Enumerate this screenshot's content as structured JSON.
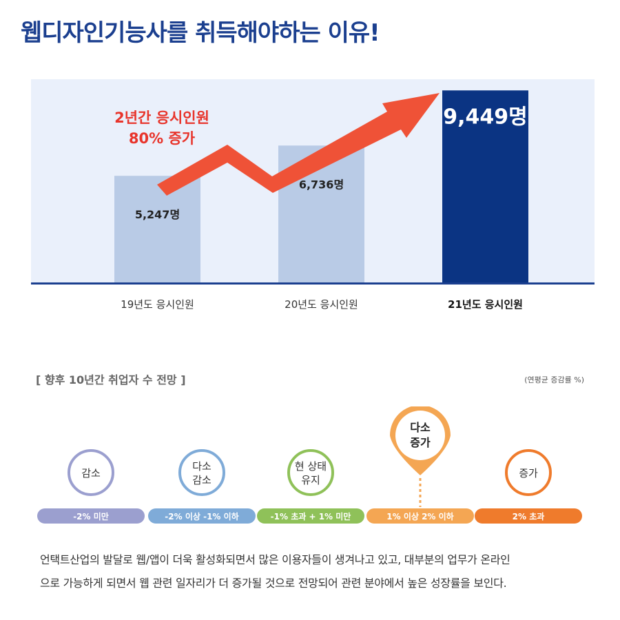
{
  "title": "웹디자인기능사를 취득해야하는 이유!",
  "chart_data": {
    "type": "bar",
    "categories": [
      "19년도 응시인원",
      "20년도 응시인원",
      "21년도 응시인원"
    ],
    "values": [
      5247,
      6736,
      9449
    ],
    "value_labels": [
      "5,247명",
      "6,736명",
      "9,449명"
    ],
    "ylim": [
      0,
      10000
    ],
    "annotation": [
      "2년간 응시인원",
      "80% 증가"
    ],
    "colors": {
      "bar_light": "#b9cbe6",
      "bar_highlight": "#0b3483",
      "arrow": "#ef5237",
      "annotation": "#e8342b",
      "baseline": "#1b3f8f"
    }
  },
  "outlook": {
    "title": "[ 향후 10년간 취업자 수 전망 ]",
    "note": "(연평균 증감률 %)",
    "categories": [
      {
        "label": [
          "감소"
        ],
        "range": "-2% 미만",
        "color": "#9b9fcf"
      },
      {
        "label": [
          "다소",
          "감소"
        ],
        "range": "-2% 이상 -1% 이하",
        "color": "#7fabd8"
      },
      {
        "label": [
          "현 상태",
          "유지"
        ],
        "range": "-1% 초과 + 1% 미만",
        "color": "#8fc159"
      },
      {
        "label": [
          "다소",
          "증가"
        ],
        "range": "1% 이상 2% 이하",
        "color": "#f4a653"
      },
      {
        "label": [
          "증가"
        ],
        "range": "2% 초과",
        "color": "#ef7b2c"
      }
    ],
    "highlighted_index": 3
  },
  "description": [
    "언택트산업의 발달로 웹/앱이 더욱 활성화되면서 많은 이용자들이 생겨나고 있고, 대부분의 업무가 온라인",
    "으로 가능하게 되면서 웹 관련 일자리가 더 증가될 것으로 전망되어 관련 분야에서 높은 성장률을 보인다."
  ]
}
